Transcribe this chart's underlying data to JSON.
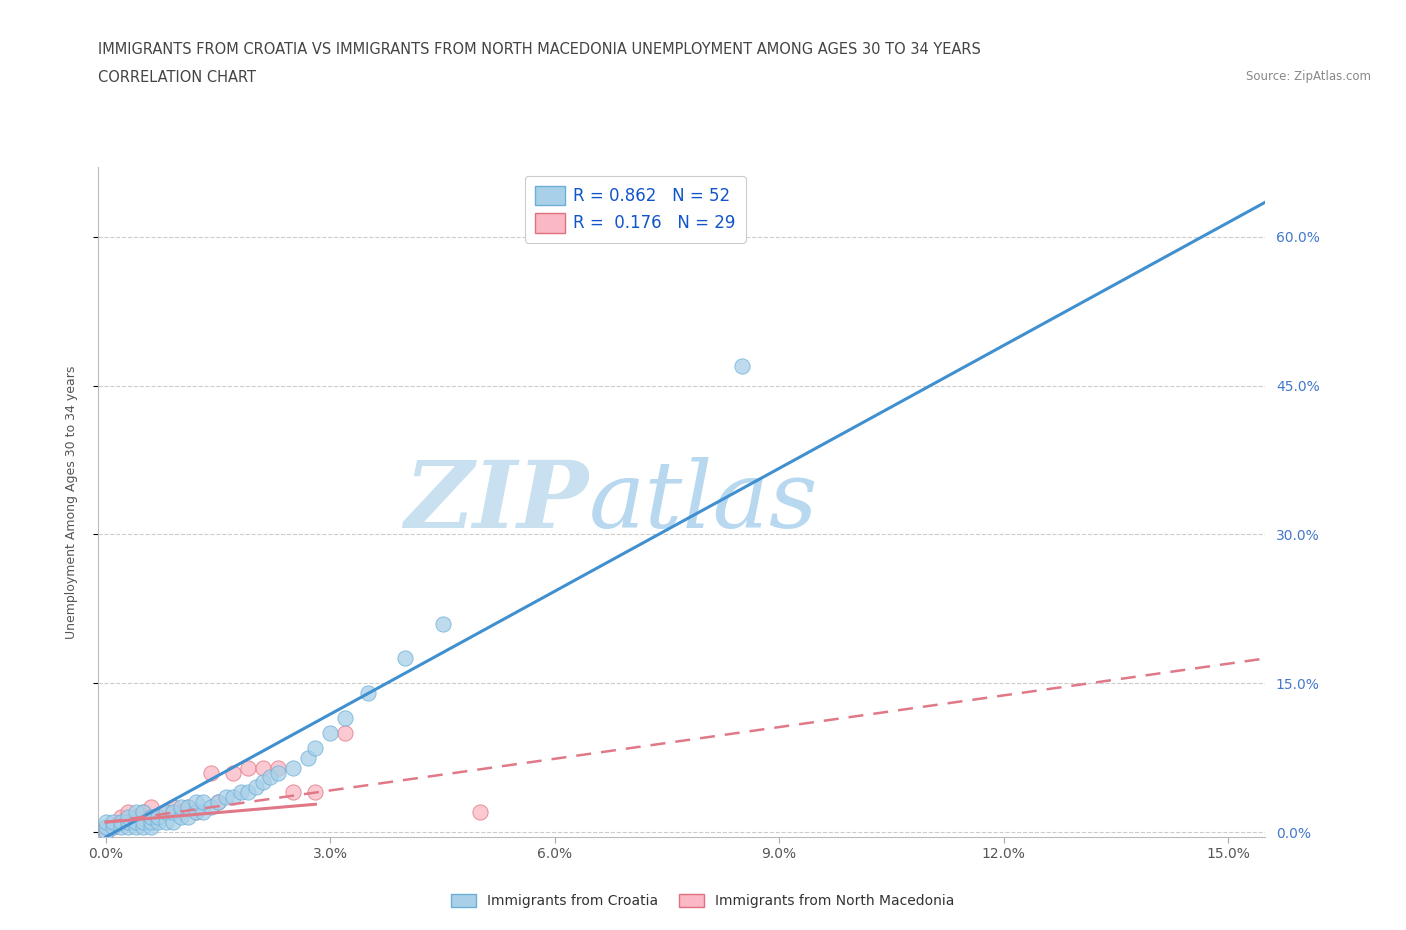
{
  "title_line1": "IMMIGRANTS FROM CROATIA VS IMMIGRANTS FROM NORTH MACEDONIA UNEMPLOYMENT AMONG AGES 30 TO 34 YEARS",
  "title_line2": "CORRELATION CHART",
  "source_text": "Source: ZipAtlas.com",
  "ylabel": "Unemployment Among Ages 30 to 34 years",
  "xlim": [
    -0.001,
    0.155
  ],
  "ylim": [
    -0.005,
    0.67
  ],
  "xticks": [
    0.0,
    0.03,
    0.06,
    0.09,
    0.12,
    0.15
  ],
  "xtick_labels": [
    "0.0%",
    "3.0%",
    "6.0%",
    "9.0%",
    "12.0%",
    "15.0%"
  ],
  "yticks": [
    0.0,
    0.15,
    0.3,
    0.45,
    0.6
  ],
  "ytick_labels": [
    "0.0%",
    "15.0%",
    "30.0%",
    "45.0%",
    "60.0%"
  ],
  "croatia_color": "#A8D0E8",
  "croatia_edge_color": "#6BAED6",
  "north_mac_color": "#F9B8C4",
  "north_mac_edge_color": "#E07080",
  "croatia_line_color": "#4090D0",
  "north_mac_line_color": "#E07888",
  "ytick_color": "#4477CC",
  "xtick_color": "#555555",
  "watermark_color": "#C8E0F0",
  "watermark_color2": "#B8D8F0",
  "legend_R1": "0.862",
  "legend_N1": "52",
  "legend_R2": "0.176",
  "legend_N2": "29",
  "legend_label1": "Immigrants from Croatia",
  "legend_label2": "Immigrants from North Macedonia",
  "croatia_scatter_x": [
    0.0,
    0.0,
    0.0,
    0.001,
    0.001,
    0.002,
    0.002,
    0.003,
    0.003,
    0.003,
    0.004,
    0.004,
    0.004,
    0.005,
    0.005,
    0.005,
    0.006,
    0.006,
    0.006,
    0.007,
    0.007,
    0.008,
    0.008,
    0.009,
    0.009,
    0.01,
    0.01,
    0.011,
    0.011,
    0.012,
    0.012,
    0.013,
    0.013,
    0.014,
    0.015,
    0.016,
    0.017,
    0.018,
    0.019,
    0.02,
    0.021,
    0.022,
    0.023,
    0.025,
    0.027,
    0.028,
    0.03,
    0.032,
    0.035,
    0.04,
    0.045,
    0.085
  ],
  "croatia_scatter_y": [
    0.0,
    0.005,
    0.01,
    0.005,
    0.01,
    0.005,
    0.01,
    0.005,
    0.01,
    0.015,
    0.005,
    0.01,
    0.02,
    0.005,
    0.01,
    0.02,
    0.005,
    0.01,
    0.015,
    0.01,
    0.015,
    0.01,
    0.02,
    0.01,
    0.02,
    0.015,
    0.025,
    0.015,
    0.025,
    0.02,
    0.03,
    0.02,
    0.03,
    0.025,
    0.03,
    0.035,
    0.035,
    0.04,
    0.04,
    0.045,
    0.05,
    0.055,
    0.06,
    0.065,
    0.075,
    0.085,
    0.1,
    0.115,
    0.14,
    0.175,
    0.21,
    0.47
  ],
  "north_mac_scatter_x": [
    0.0,
    0.0,
    0.001,
    0.002,
    0.002,
    0.003,
    0.003,
    0.004,
    0.004,
    0.005,
    0.005,
    0.006,
    0.006,
    0.007,
    0.008,
    0.009,
    0.01,
    0.011,
    0.012,
    0.014,
    0.015,
    0.017,
    0.019,
    0.021,
    0.023,
    0.025,
    0.028,
    0.032,
    0.05
  ],
  "north_mac_scatter_y": [
    0.0,
    0.005,
    0.005,
    0.01,
    0.015,
    0.01,
    0.02,
    0.01,
    0.015,
    0.015,
    0.02,
    0.015,
    0.025,
    0.015,
    0.02,
    0.025,
    0.02,
    0.025,
    0.02,
    0.06,
    0.03,
    0.06,
    0.065,
    0.065,
    0.065,
    0.04,
    0.04,
    0.1,
    0.02
  ],
  "grid_color": "#CCCCCC",
  "background_color": "#FFFFFF",
  "title_fontsize": 10.5,
  "axis_label_fontsize": 9,
  "tick_fontsize": 10
}
